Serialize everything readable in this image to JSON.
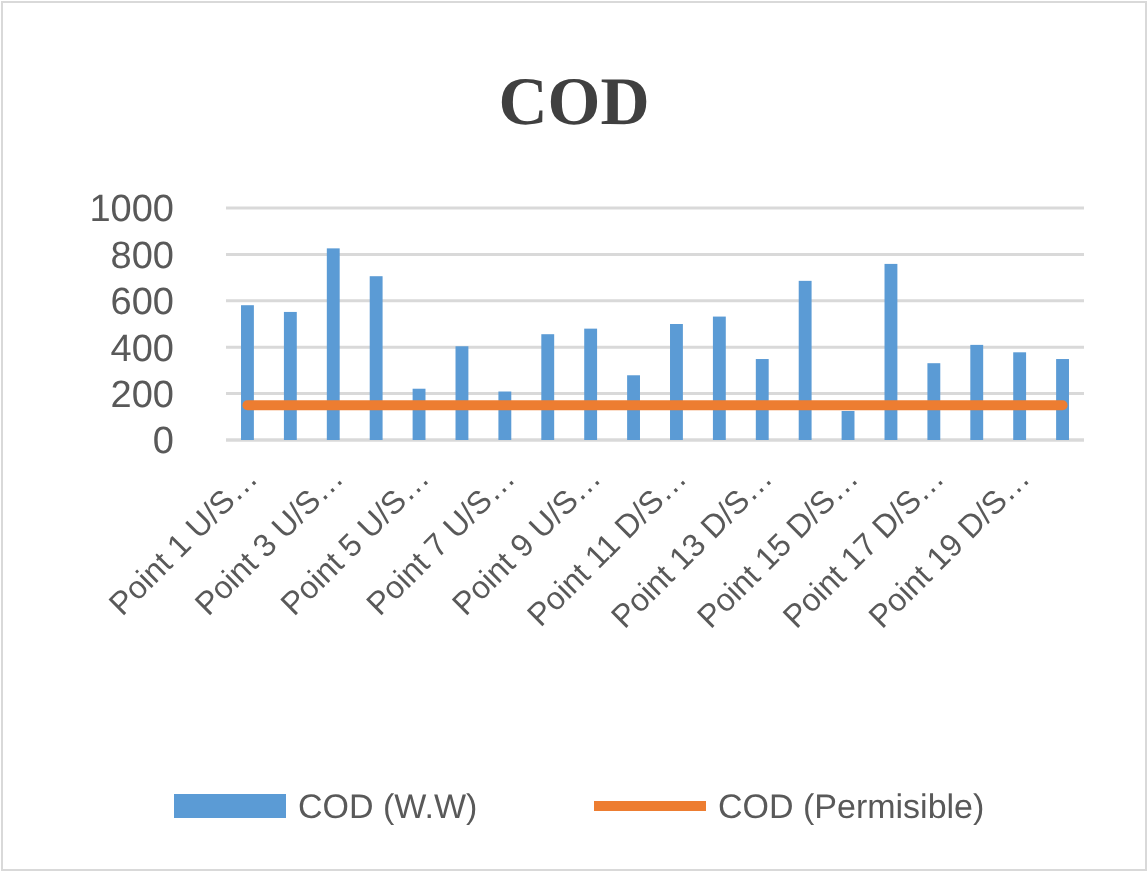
{
  "chart_data": {
    "type": "bar",
    "title": "COD",
    "categories": [
      "Point 1 U/S…",
      null,
      "Point 3 U/S…",
      null,
      "Point 5 U/S…",
      null,
      "Point 7 U/S…",
      null,
      "Point 9 U/S…",
      null,
      "Point 11 D/S…",
      null,
      "Point 13 D/S…",
      null,
      "Point 15 D/S…",
      null,
      "Point 17 D/S…",
      null,
      "Point 19 D/S…",
      null
    ],
    "series": [
      {
        "name": "COD (W.W)",
        "color": "#5b9bd5",
        "values": [
          581,
          552,
          826,
          706,
          221,
          404,
          209,
          456,
          480,
          279,
          500,
          532,
          349,
          686,
          125,
          759,
          331,
          410,
          378,
          349
        ]
      },
      {
        "name": "COD (Permisible)",
        "type": "line",
        "color": "#ed7d31",
        "values": [
          150,
          150,
          150,
          150,
          150,
          150,
          150,
          150,
          150,
          150,
          150,
          150,
          150,
          150,
          150,
          150,
          150,
          150,
          150,
          150
        ]
      }
    ],
    "ylim": [
      0,
      1000
    ],
    "yticks": [
      0,
      200,
      400,
      600,
      800,
      1000
    ],
    "grid": "y",
    "legend": "bottom"
  }
}
